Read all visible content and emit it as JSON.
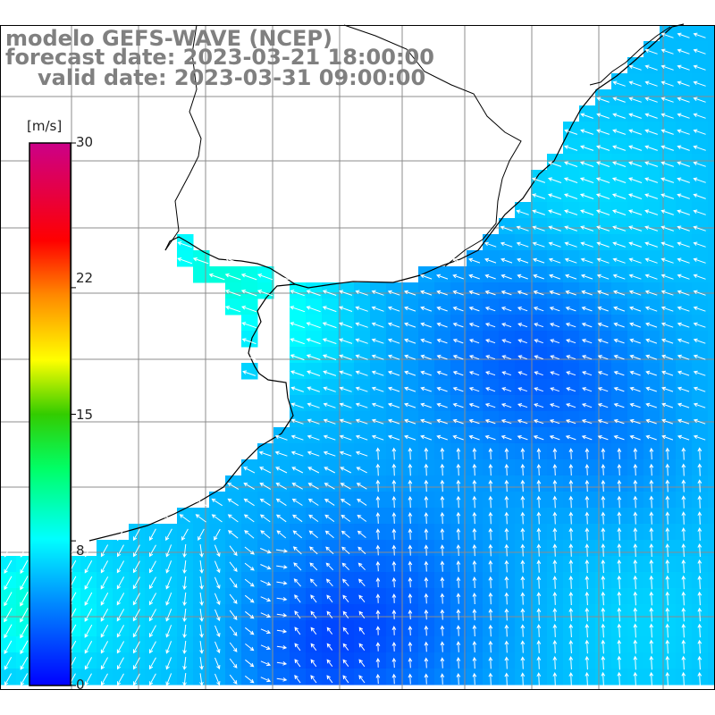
{
  "title": {
    "line1": "modelo GEFS-WAVE (NCEP)",
    "line2": "forecast date: 2023-03-21 18:00:00",
    "line3": "valid date: 2023-03-31 09:00:00"
  },
  "colorbar": {
    "unit": "[m/s]",
    "min": 0,
    "max": 30,
    "ticks": [
      "30",
      "22",
      "15",
      "8",
      "0"
    ],
    "tick_values": [
      30,
      22,
      15,
      8,
      0
    ]
  },
  "colors": {
    "land": "#ffffff",
    "grid": "#8c8c8c",
    "coast": "#000000",
    "arrow": "#ffffff",
    "label": "#808080"
  },
  "map": {
    "variable": "wind speed and direction",
    "units": "m/s",
    "region": "southern Brazil, Uruguay and Rio de la Plata coast with adjacent South Atlantic",
    "lon_range": [
      -60,
      -46
    ],
    "lat_range": [
      -38,
      -27
    ],
    "grid_lines": true
  }
}
